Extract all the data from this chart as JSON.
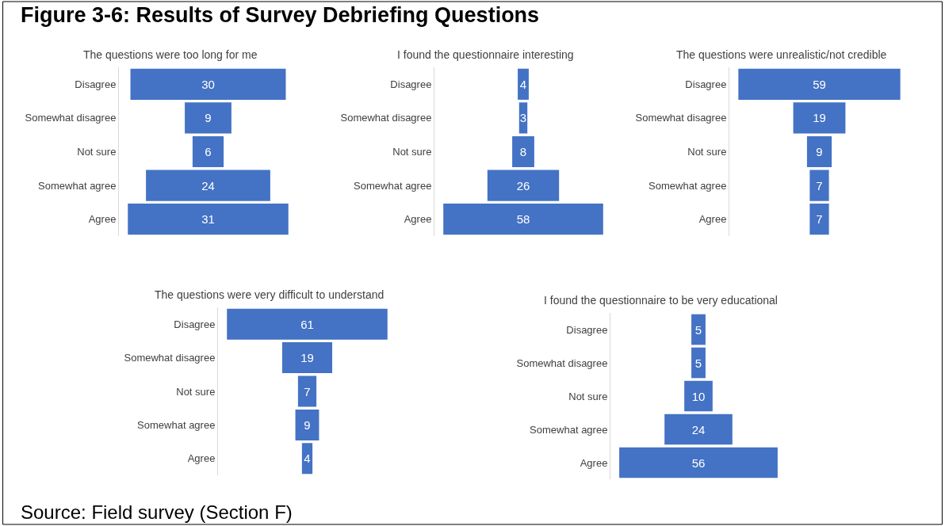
{
  "chart_data": [
    {
      "type": "other",
      "title": "The questions were too long for me",
      "categories": [
        "Disagree",
        "Somewhat disagree",
        "Not sure",
        "Somewhat agree",
        "Agree"
      ],
      "values": [
        30,
        9,
        6,
        24,
        31
      ],
      "color": "#4472c4",
      "data_labels": true,
      "annotations": [
        "Figure 3-6: Results of Survey Debriefing Questions"
      ]
    },
    {
      "type": "other",
      "title": "I found the questionnaire interesting",
      "categories": [
        "Disagree",
        "Somewhat disagree",
        "Not sure",
        "Somewhat agree",
        "Agree"
      ],
      "values": [
        4,
        3,
        8,
        26,
        58
      ],
      "color": "#4472c4",
      "data_labels": true
    },
    {
      "type": "other",
      "title": "The questions were unrealistic/not credible",
      "categories": [
        "Disagree",
        "Somewhat disagree",
        "Not sure",
        "Somewhat agree",
        "Agree"
      ],
      "values": [
        59,
        19,
        9,
        7,
        7
      ],
      "color": "#4472c4",
      "data_labels": true
    },
    {
      "type": "other",
      "title": "The questions were very difficult to understand",
      "categories": [
        "Disagree",
        "Somewhat disagree",
        "Not sure",
        "Somewhat agree",
        "Agree"
      ],
      "values": [
        61,
        19,
        7,
        9,
        4
      ],
      "color": "#4472c4",
      "data_labels": true
    },
    {
      "type": "other",
      "title": "I found the questionnaire to be very educational",
      "categories": [
        "Disagree",
        "Somewhat disagree",
        "Not sure",
        "Somewhat agree",
        "Agree"
      ],
      "values": [
        5,
        5,
        10,
        24,
        56
      ],
      "color": "#4472c4",
      "data_labels": true,
      "annotations": [
        "Source: Field survey (Section F)"
      ]
    }
  ]
}
